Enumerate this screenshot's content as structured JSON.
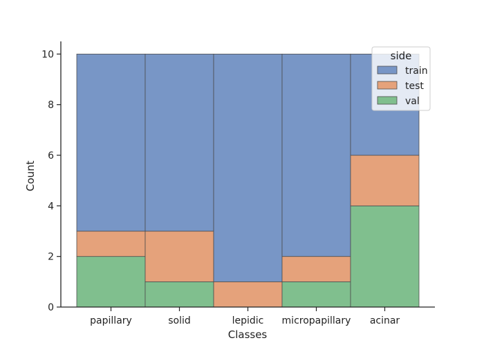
{
  "chart_data": {
    "type": "bar",
    "stacked": true,
    "categories": [
      "papillary",
      "solid",
      "lepidic",
      "micropapillary",
      "acinar"
    ],
    "series": [
      {
        "name": "val",
        "values": [
          2,
          1,
          0,
          1,
          4
        ],
        "color": "#80bf8e"
      },
      {
        "name": "test",
        "values": [
          1,
          2,
          1,
          1,
          2
        ],
        "color": "#e5a27b"
      },
      {
        "name": "train",
        "values": [
          7,
          7,
          9,
          8,
          4
        ],
        "color": "#7896c6"
      }
    ],
    "legend_order": [
      "train",
      "test",
      "val"
    ],
    "xlabel": "Classes",
    "ylabel": "Count",
    "ylim": [
      0,
      10.5
    ],
    "yticks": [
      "0",
      "2",
      "4",
      "6",
      "8",
      "10"
    ],
    "legend_title": "side",
    "legend_position": "top-right",
    "grid": false
  }
}
